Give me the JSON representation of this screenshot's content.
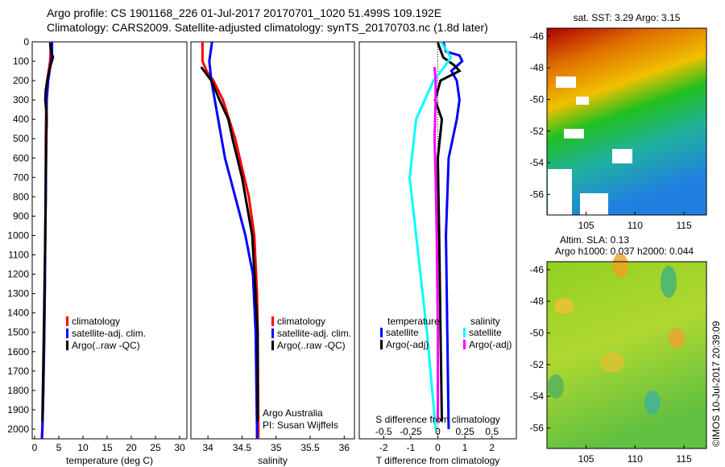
{
  "header": {
    "line1": "Argo profile: CS 1901168_226 01-Jul-2017 20170701_1020 51.499S 109.192E",
    "line2": "Climatology: CARS2009. Satellite-adjusted climatology: synTS_20170703.nc (1.8d later)"
  },
  "colors": {
    "climatology": "#ff0000",
    "satellite": "#0000ff",
    "argo": "#000000",
    "sal_satellite": "#00ffff",
    "sal_argo": "#ff00ff"
  },
  "chart_data": [
    {
      "type": "line",
      "name": "temperature",
      "xlabel": "temperature (deg C)",
      "xlim": [
        -0.5,
        31.5
      ],
      "ylim": [
        2050,
        0
      ],
      "xticks": [
        0,
        5,
        10,
        15,
        20,
        25,
        30
      ],
      "yticks": [
        0,
        100,
        200,
        300,
        400,
        500,
        600,
        700,
        800,
        900,
        1000,
        1100,
        1200,
        1300,
        1400,
        1500,
        1600,
        1700,
        1800,
        1900,
        2000
      ],
      "legend": [
        "climatology",
        "satellite-adj. clim.",
        "Argo(..raw -QC)"
      ],
      "series": [
        {
          "name": "climatology",
          "color": "#ff0000",
          "depth": [
            0,
            50,
            100,
            150,
            200,
            300,
            500,
            800,
            1000,
            1300,
            1500,
            1800,
            2000,
            2050
          ],
          "values": [
            3.3,
            3.3,
            3.2,
            2.9,
            2.6,
            2.4,
            2.3,
            2.3,
            2.2,
            2.1,
            2.0,
            1.8,
            1.6,
            1.5
          ]
        },
        {
          "name": "satellite-adj. clim.",
          "color": "#0000ff",
          "depth": [
            0,
            50,
            100,
            150,
            200,
            300,
            500,
            800,
            1000,
            1300,
            1500,
            1800,
            2000,
            2050
          ],
          "values": [
            3.6,
            3.6,
            3.4,
            3.1,
            2.8,
            2.5,
            2.4,
            2.3,
            2.2,
            2.1,
            2.0,
            1.8,
            1.6,
            1.5
          ]
        },
        {
          "name": "Argo(..raw -QC)",
          "color": "#000000",
          "depth": [
            5,
            50,
            80,
            120,
            150,
            200,
            250,
            300,
            350,
            400,
            500,
            700,
            1000,
            1500,
            1960
          ],
          "values": [
            3.2,
            3.4,
            3.8,
            3.3,
            3.0,
            2.6,
            2.3,
            2.2,
            2.4,
            2.5,
            2.4,
            2.3,
            2.2,
            1.9,
            1.6
          ]
        }
      ]
    },
    {
      "type": "line",
      "name": "salinity",
      "xlabel": "salinity",
      "xlim": [
        33.75,
        36.15
      ],
      "ylim": [
        2050,
        0
      ],
      "xticks": [
        34,
        34.5,
        35,
        35.5,
        36
      ],
      "legend": [
        "climatology",
        "satellite-adj. clim.",
        "Argo(..raw -QC)"
      ],
      "annotation": [
        "Argo Australia",
        "PI: Susan Wijffels"
      ],
      "series": [
        {
          "name": "climatology",
          "color": "#ff0000",
          "depth": [
            0,
            100,
            150,
            200,
            300,
            500,
            800,
            1000,
            1300,
            1500,
            2000,
            2050
          ],
          "values": [
            33.92,
            33.92,
            33.98,
            34.08,
            34.22,
            34.4,
            34.6,
            34.68,
            34.72,
            34.73,
            34.74,
            34.74
          ]
        },
        {
          "name": "satellite-adj. clim.",
          "color": "#0000ff",
          "depth": [
            0,
            100,
            200,
            400,
            600,
            800,
            1000,
            1200,
            1500,
            2000,
            2050
          ],
          "values": [
            34.06,
            34.02,
            34.05,
            34.15,
            34.25,
            34.4,
            34.55,
            34.66,
            34.7,
            34.72,
            34.72
          ]
        },
        {
          "name": "Argo(..raw -QC)",
          "color": "#000000",
          "depth": [
            130,
            200,
            300,
            400,
            500,
            700,
            1000,
            1500,
            1960
          ],
          "values": [
            33.9,
            34.05,
            34.17,
            34.3,
            34.36,
            34.5,
            34.65,
            34.73,
            34.73
          ]
        }
      ]
    },
    {
      "type": "line",
      "name": "difference",
      "xlabel": "T difference from climatology",
      "xlabel2": "S difference from climatology",
      "xlim": [
        -2.9,
        2.9
      ],
      "xticks": [
        -2,
        -1,
        0,
        1,
        2
      ],
      "xticks2": [
        -0.5,
        -0.25,
        0,
        0.25,
        0.5
      ],
      "s_to_t_scale": 4,
      "legend_temperature": {
        "title": "temperature",
        "items": [
          "satellite",
          "Argo(-adj)"
        ]
      },
      "legend_salinity": {
        "title": "salinity",
        "items": [
          "satellite",
          "Argo(-adj)"
        ]
      },
      "series": [
        {
          "name": "T satellite",
          "color": "#0000ff",
          "units": "T",
          "depth": [
            0,
            50,
            70,
            100,
            150,
            200,
            300,
            400,
            600,
            1000,
            1500,
            2000
          ],
          "values": [
            0.2,
            0.3,
            0.8,
            0.9,
            0.5,
            0.7,
            0.8,
            0.7,
            0.4,
            0.3,
            0.35,
            0.4
          ]
        },
        {
          "name": "T Argo(-adj)",
          "color": "#000000",
          "units": "T",
          "depth": [
            5,
            80,
            120,
            150,
            200,
            300,
            400,
            600,
            1000,
            1500,
            1960
          ],
          "values": [
            0.0,
            0.2,
            0.6,
            0.8,
            0.1,
            -0.1,
            0.15,
            0.0,
            0.05,
            0.1,
            0.15
          ]
        },
        {
          "name": "S satellite",
          "color": "#00ffff",
          "units": "S",
          "depth": [
            0,
            80,
            130,
            200,
            400,
            700,
            1000,
            1500,
            2000
          ],
          "values": [
            0.03,
            0.12,
            0.06,
            -0.04,
            -0.2,
            -0.26,
            -0.2,
            -0.1,
            -0.02
          ]
        },
        {
          "name": "S Argo(-adj)",
          "color": "#ff00ff",
          "units": "S",
          "depth": [
            130,
            200,
            300,
            500,
            700,
            1000,
            1500,
            1960
          ],
          "values": [
            -0.03,
            -0.02,
            -0.02,
            -0.03,
            -0.02,
            -0.01,
            0.0,
            0.0
          ]
        }
      ]
    },
    {
      "type": "heatmap",
      "name": "sst-map",
      "title": "sat. SST: 3.29 Argo: 3.15",
      "xticks": [
        105,
        110,
        115
      ],
      "yticks": [
        -46,
        -48,
        -50,
        -52,
        -54,
        -56
      ],
      "xlim": [
        101,
        117.3
      ],
      "ylim": [
        -57.3,
        -45.5
      ]
    },
    {
      "type": "heatmap",
      "name": "sla-map",
      "title": "Altim. SLA: 0.13",
      "subtitle": "Argo h1000: 0.037 h2000: 0.044",
      "xticks": [
        105,
        110,
        115
      ],
      "yticks": [
        -46,
        -48,
        -50,
        -52,
        -54,
        -56
      ],
      "xlim": [
        101,
        117.3
      ],
      "ylim": [
        -57.3,
        -45.5
      ]
    }
  ],
  "footer": {
    "credit": "©IMOS 10-Jul-2017 20:39:09"
  }
}
